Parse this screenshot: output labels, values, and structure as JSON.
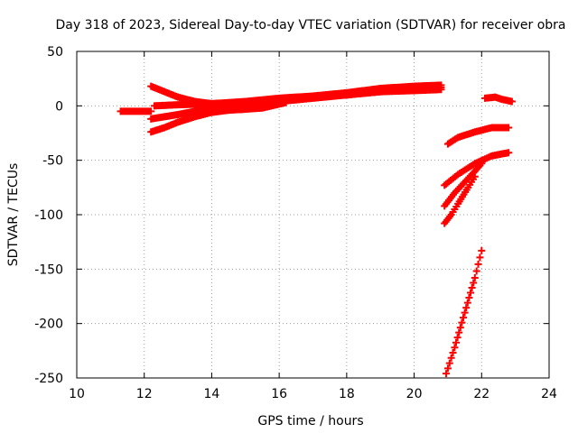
{
  "chart_data": {
    "type": "scatter",
    "title": "Day 318 of 2023, Sidereal Day-to-day VTEC variation (SDTVAR) for receiver obra",
    "xlabel": "GPS time / hours",
    "ylabel": "SDTVAR / TECUs",
    "xlim": [
      10,
      24
    ],
    "ylim": [
      -250,
      50
    ],
    "xticks": [
      10,
      12,
      14,
      16,
      18,
      20,
      22,
      24
    ],
    "yticks": [
      50,
      0,
      -50,
      -100,
      -150,
      -200,
      -250
    ],
    "grid": true,
    "marker": "+",
    "color": "#ff0000",
    "series": [
      {
        "name": "arc-1",
        "points": [
          [
            11.3,
            -5
          ],
          [
            11.8,
            -5
          ],
          [
            12.2,
            -5
          ]
        ]
      },
      {
        "name": "arc-2",
        "points": [
          [
            12.2,
            18
          ],
          [
            12.6,
            13
          ],
          [
            13.0,
            8
          ],
          [
            13.5,
            4
          ],
          [
            14.0,
            2
          ]
        ]
      },
      {
        "name": "arc-3",
        "points": [
          [
            12.2,
            -12
          ],
          [
            13.0,
            -8
          ],
          [
            13.5,
            -5
          ],
          [
            14.0,
            -2
          ],
          [
            15.0,
            2
          ],
          [
            16.0,
            5
          ],
          [
            17.0,
            8
          ],
          [
            18.0,
            10
          ],
          [
            19.0,
            13
          ],
          [
            20.0,
            15
          ],
          [
            20.8,
            17
          ]
        ]
      },
      {
        "name": "arc-4",
        "points": [
          [
            12.2,
            -24
          ],
          [
            12.6,
            -20
          ],
          [
            13.0,
            -15
          ],
          [
            13.5,
            -10
          ],
          [
            14.0,
            -6
          ],
          [
            14.5,
            -4
          ],
          [
            15.0,
            -3
          ],
          [
            15.5,
            0
          ],
          [
            16.0,
            4
          ],
          [
            17.0,
            7
          ],
          [
            18.0,
            10
          ],
          [
            19.0,
            13
          ],
          [
            20.0,
            14
          ],
          [
            20.8,
            15
          ]
        ]
      },
      {
        "name": "arc-5",
        "points": [
          [
            12.3,
            0
          ],
          [
            13.0,
            1
          ],
          [
            14.0,
            2
          ],
          [
            15.0,
            4
          ],
          [
            16.0,
            7
          ],
          [
            17.0,
            9
          ],
          [
            18.0,
            12
          ],
          [
            19.0,
            16
          ],
          [
            20.0,
            18
          ],
          [
            20.8,
            19
          ]
        ]
      },
      {
        "name": "arc-6",
        "points": [
          [
            13.5,
            -6
          ],
          [
            14.5,
            -4
          ],
          [
            15.5,
            -2
          ],
          [
            16.2,
            3
          ]
        ]
      },
      {
        "name": "arc-7",
        "points": [
          [
            21.0,
            -35
          ],
          [
            21.3,
            -29
          ],
          [
            21.8,
            -24
          ],
          [
            22.3,
            -20
          ],
          [
            22.8,
            -20
          ]
        ]
      },
      {
        "name": "arc-8",
        "points": [
          [
            20.9,
            -73
          ],
          [
            21.3,
            -63
          ],
          [
            21.8,
            -53
          ],
          [
            22.3,
            -46
          ],
          [
            22.8,
            -43
          ]
        ]
      },
      {
        "name": "arc-9",
        "points": [
          [
            20.9,
            -92
          ],
          [
            21.2,
            -80
          ],
          [
            21.5,
            -70
          ],
          [
            21.8,
            -60
          ],
          [
            22.0,
            -53
          ]
        ]
      },
      {
        "name": "arc-10",
        "points": [
          [
            20.9,
            -108
          ],
          [
            21.1,
            -100
          ],
          [
            21.3,
            -90
          ],
          [
            21.6,
            -75
          ],
          [
            21.8,
            -65
          ]
        ]
      },
      {
        "name": "arc-11",
        "points": [
          [
            20.95,
            -246
          ],
          [
            21.2,
            -222
          ],
          [
            21.5,
            -190
          ],
          [
            21.8,
            -158
          ],
          [
            22.0,
            -133
          ]
        ]
      },
      {
        "name": "arc-12",
        "points": [
          [
            22.1,
            7
          ],
          [
            22.4,
            8
          ],
          [
            22.6,
            6
          ],
          [
            22.9,
            4
          ]
        ]
      }
    ]
  }
}
